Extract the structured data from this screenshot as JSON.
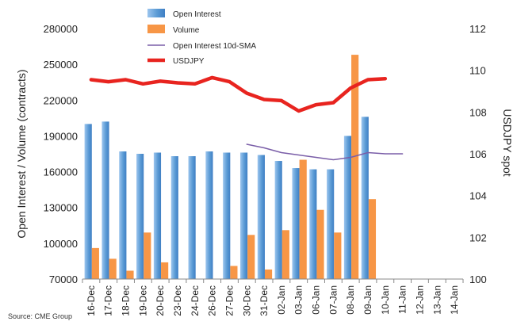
{
  "chart_data": {
    "type": "bar",
    "source": "Source: CME Group",
    "categories": [
      "16-Dec",
      "17-Dec",
      "18-Dec",
      "19-Dec",
      "20-Dec",
      "23-Dec",
      "24-Dec",
      "26-Dec",
      "27-Dec",
      "30-Dec",
      "31-Dec",
      "02-Jan",
      "03-Jan",
      "06-Jan",
      "07-Jan",
      "08-Jan",
      "09-Jan",
      "10-Jan",
      "11-Jan",
      "12-Jan",
      "13-Jan",
      "14-Jan"
    ],
    "y_left": {
      "label": "Open Interest / Volume (contracts)",
      "min": 70000,
      "max": 280000,
      "ticks": [
        70000,
        100000,
        130000,
        160000,
        190000,
        220000,
        250000,
        280000
      ]
    },
    "y_right": {
      "label": "USDJPY spot",
      "min": 100,
      "max": 112,
      "ticks": [
        100,
        102,
        104,
        106,
        108,
        110,
        112
      ]
    },
    "legend": {
      "position": "top-center"
    },
    "series": [
      {
        "name": "Open Interest",
        "type": "bar",
        "axis": "left",
        "color": "#5b9bd5",
        "values": [
          200000,
          202000,
          177000,
          175000,
          176000,
          173000,
          173000,
          177000,
          176000,
          176000,
          174000,
          169000,
          163000,
          162000,
          162000,
          190000,
          206000,
          null,
          null,
          null,
          null,
          null
        ]
      },
      {
        "name": "Volume",
        "type": "bar",
        "axis": "left",
        "color": "#f79646",
        "values": [
          96000,
          87000,
          77000,
          109000,
          84000,
          null,
          null,
          null,
          81000,
          107000,
          78000,
          111000,
          170000,
          128000,
          109000,
          258000,
          137000,
          null,
          null,
          null,
          null,
          null
        ]
      },
      {
        "name": "Open Interest 10d-SMA",
        "type": "line",
        "axis": "left",
        "color": "#7a5ea8",
        "values": [
          null,
          null,
          null,
          null,
          null,
          null,
          null,
          null,
          null,
          183000,
          180000,
          176000,
          174000,
          172000,
          170000,
          172000,
          176000,
          175000,
          175000,
          null,
          null,
          null
        ]
      },
      {
        "name": "USDJPY",
        "type": "line",
        "axis": "right",
        "color": "#e8241f",
        "values": [
          109.55,
          109.45,
          109.55,
          109.35,
          109.48,
          109.4,
          109.35,
          109.65,
          109.45,
          108.9,
          108.6,
          108.55,
          108.05,
          108.35,
          108.45,
          109.15,
          109.55,
          109.6,
          null,
          null,
          null,
          null
        ]
      }
    ]
  }
}
